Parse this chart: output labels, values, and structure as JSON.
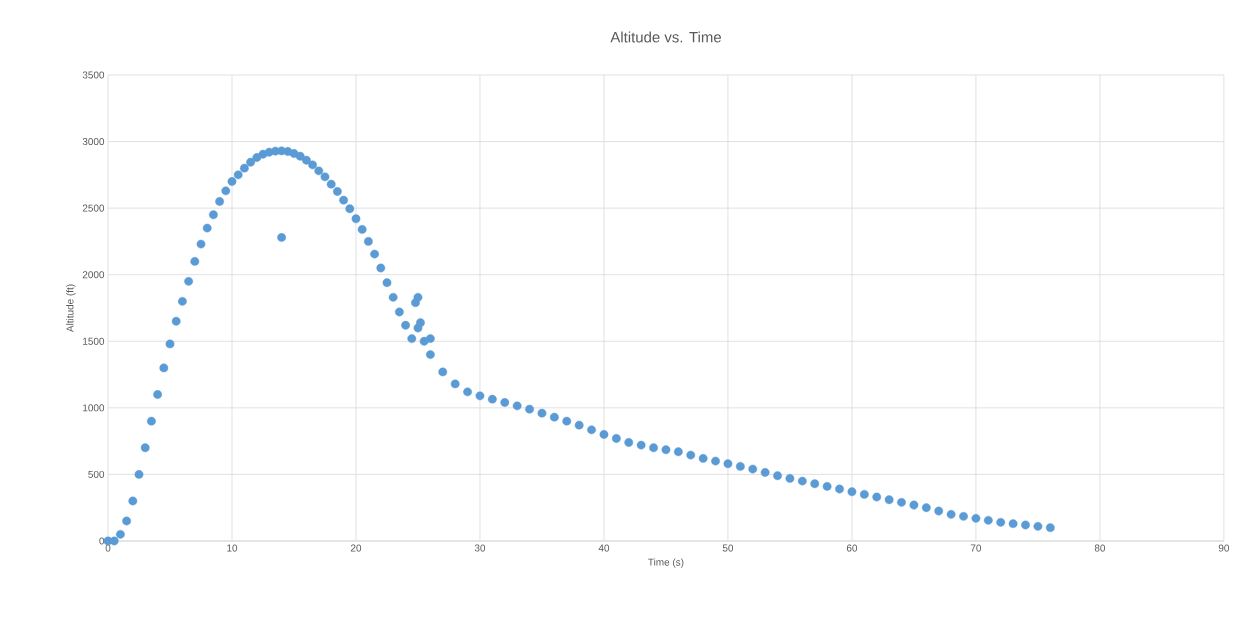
{
  "chart_data": {
    "type": "scatter",
    "title": "Altitude vs. Time",
    "xlabel": "Time (s)",
    "ylabel": "Altitude (ft)",
    "xlim": [
      0,
      90
    ],
    "xticks": [
      0,
      10,
      20,
      30,
      40,
      50,
      60,
      70,
      80,
      90
    ],
    "ylim": [
      0,
      3500
    ],
    "yticks": [
      0,
      500,
      1000,
      1500,
      2000,
      2500,
      3000,
      3500
    ],
    "grid": true,
    "marker": "circle",
    "series": [
      {
        "color": "#5b9bd5",
        "x": [
          0,
          0.5,
          1,
          1.5,
          2,
          2.5,
          3,
          3.5,
          4,
          4.5,
          5,
          5.5,
          6,
          7,
          8,
          9,
          10,
          11,
          12,
          13,
          14,
          15,
          16,
          17,
          18,
          19,
          20,
          21,
          22,
          23,
          24,
          24.5,
          25,
          25.5,
          26,
          27,
          28,
          29,
          30,
          32,
          34,
          36,
          38,
          40,
          42,
          44,
          46,
          48,
          50,
          52,
          54,
          56,
          58,
          60,
          62,
          64,
          66,
          68,
          70,
          72,
          74,
          76,
          14,
          24.8,
          25,
          26,
          25.2,
          31,
          33,
          35,
          37,
          39,
          41,
          43,
          45,
          47,
          49,
          51,
          53,
          55,
          57,
          59,
          61,
          63,
          65,
          67,
          69,
          71,
          73,
          75,
          6.5,
          7.5,
          8.5,
          9.5,
          10.5,
          11.5,
          12.5,
          13.5,
          14.5,
          15.5,
          16.5,
          17.5,
          18.5,
          19.5,
          20.5,
          21.5,
          22.5,
          23.5
        ],
        "values": [
          0,
          0,
          50,
          150,
          300,
          500,
          700,
          900,
          1100,
          1300,
          1480,
          1650,
          1800,
          2100,
          2350,
          2550,
          2700,
          2800,
          2880,
          2920,
          2930,
          2910,
          2860,
          2780,
          2680,
          2560,
          2420,
          2250,
          2050,
          1830,
          1620,
          1520,
          1600,
          1500,
          1400,
          1270,
          1180,
          1120,
          1090,
          1040,
          990,
          930,
          870,
          800,
          740,
          700,
          670,
          620,
          580,
          540,
          490,
          450,
          410,
          370,
          330,
          290,
          250,
          200,
          170,
          140,
          120,
          100,
          2280,
          1790,
          1830,
          1520,
          1640,
          1065,
          1015,
          960,
          900,
          835,
          770,
          720,
          685,
          645,
          600,
          560,
          515,
          470,
          430,
          390,
          350,
          310,
          270,
          225,
          185,
          155,
          130,
          110,
          1950,
          2230,
          2450,
          2630,
          2750,
          2845,
          2905,
          2928,
          2925,
          2890,
          2825,
          2735,
          2625,
          2495,
          2340,
          2155,
          1940,
          1720
        ]
      }
    ]
  }
}
